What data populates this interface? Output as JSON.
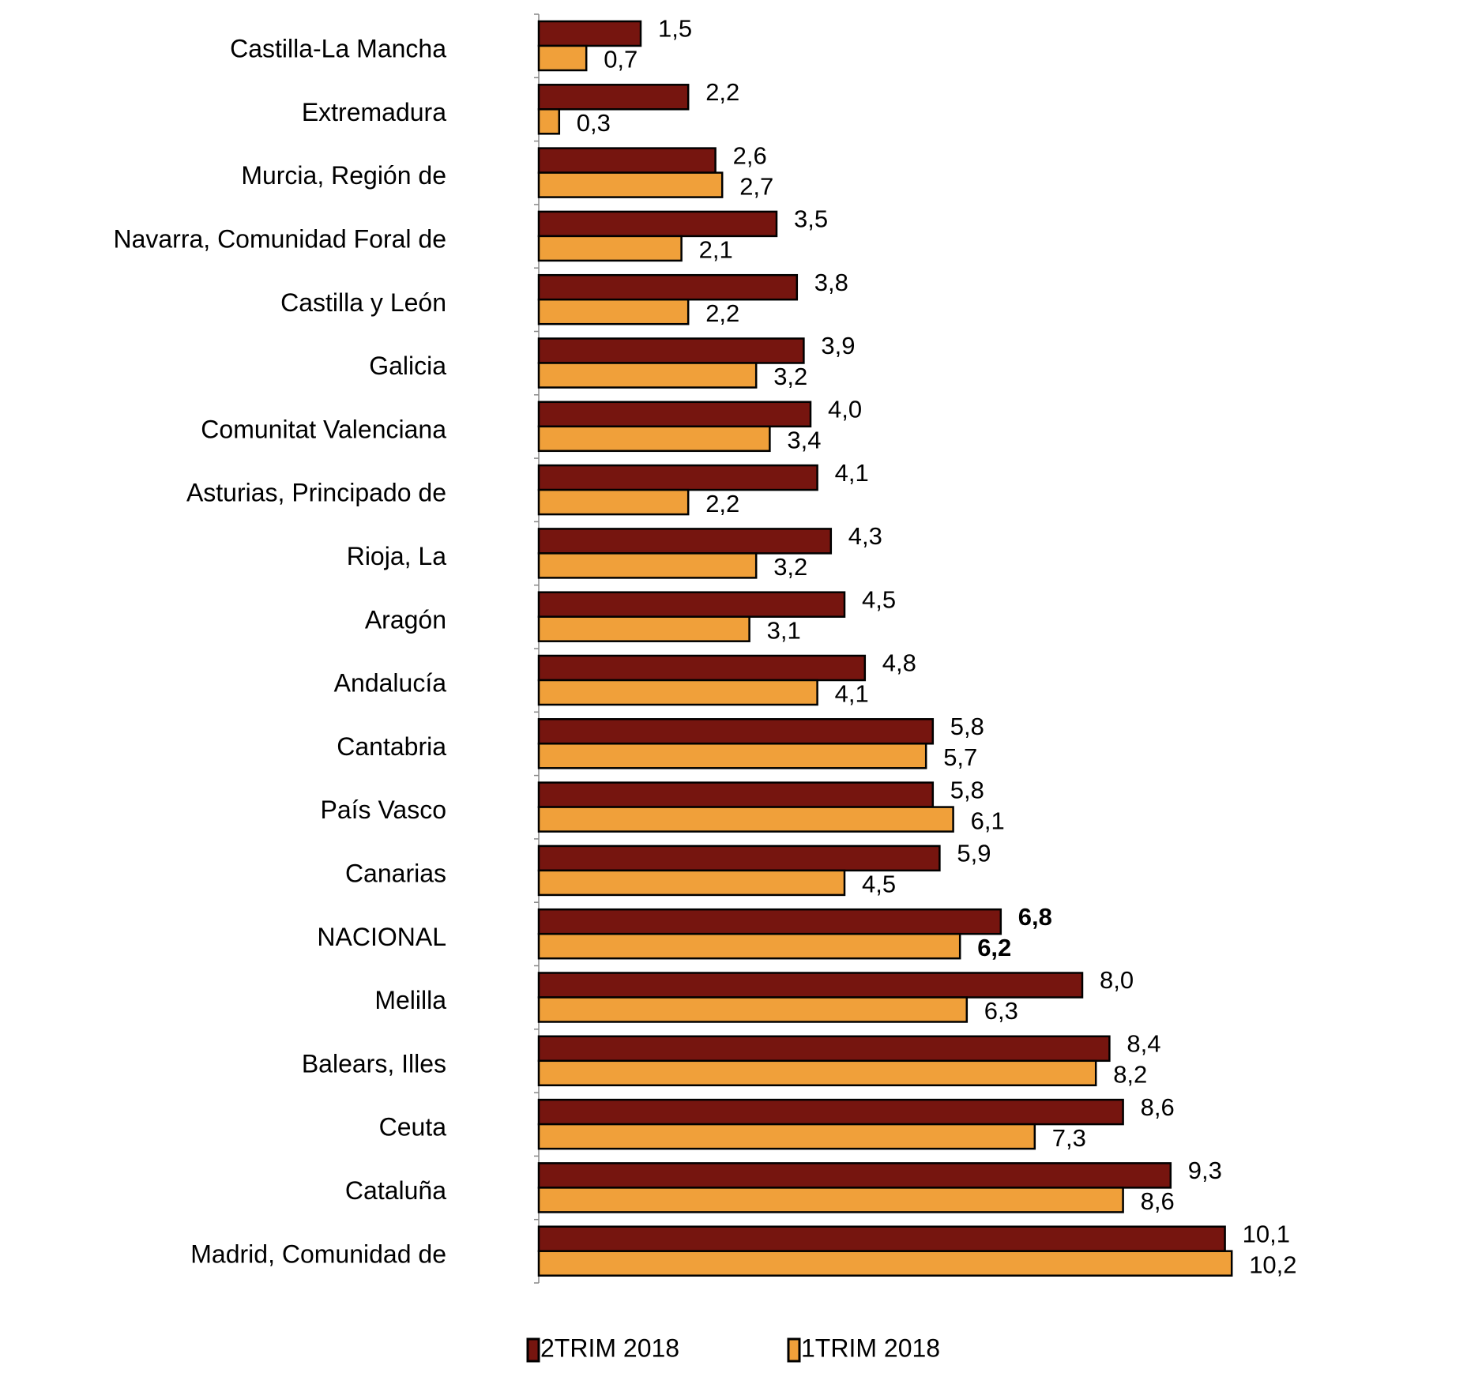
{
  "chart_data": {
    "type": "bar",
    "orientation": "horizontal",
    "categories": [
      "Castilla-La Mancha",
      "Extremadura",
      "Murcia, Región de",
      "Navarra, Comunidad Foral de",
      "Castilla y León",
      "Galicia",
      "Comunitat Valenciana",
      "Asturias, Principado de",
      "Rioja, La",
      "Aragón",
      "Andalucía",
      "Cantabria",
      "País Vasco",
      "Canarias",
      "NACIONAL",
      "Melilla",
      "Balears, Illes",
      "Ceuta",
      "Cataluña",
      "Madrid, Comunidad de"
    ],
    "series": [
      {
        "name": "2TRIM 2018",
        "color": "#76150F",
        "values": [
          1.5,
          2.2,
          2.6,
          3.5,
          3.8,
          3.9,
          4.0,
          4.1,
          4.3,
          4.5,
          4.8,
          5.8,
          5.8,
          5.9,
          6.8,
          8.0,
          8.4,
          8.6,
          9.3,
          10.1
        ],
        "labels": [
          "1,5",
          "2,2",
          "2,6",
          "3,5",
          "3,8",
          "3,9",
          "4,0",
          "4,1",
          "4,3",
          "4,5",
          "4,8",
          "5,8",
          "5,8",
          "5,9",
          "6,8",
          "8,0",
          "8,4",
          "8,6",
          "9,3",
          "10,1"
        ]
      },
      {
        "name": "1TRIM 2018",
        "color": "#F0A03A",
        "values": [
          0.7,
          0.3,
          2.7,
          2.1,
          2.2,
          3.2,
          3.4,
          2.2,
          3.2,
          3.1,
          4.1,
          5.7,
          6.1,
          4.5,
          6.2,
          6.3,
          8.2,
          7.3,
          8.6,
          10.2
        ],
        "labels": [
          "0,7",
          "0,3",
          "2,7",
          "2,1",
          "2,2",
          "3,2",
          "3,4",
          "2,2",
          "3,2",
          "3,1",
          "4,1",
          "5,7",
          "6,1",
          "4,5",
          "6,2",
          "6,3",
          "8,2",
          "7,3",
          "8,6",
          "10,2"
        ]
      }
    ],
    "highlight_category": "NACIONAL",
    "xlim": [
      0,
      10.5
    ],
    "grid": false,
    "legend": "bottom",
    "xlabel": "",
    "ylabel": "",
    "title": ""
  }
}
